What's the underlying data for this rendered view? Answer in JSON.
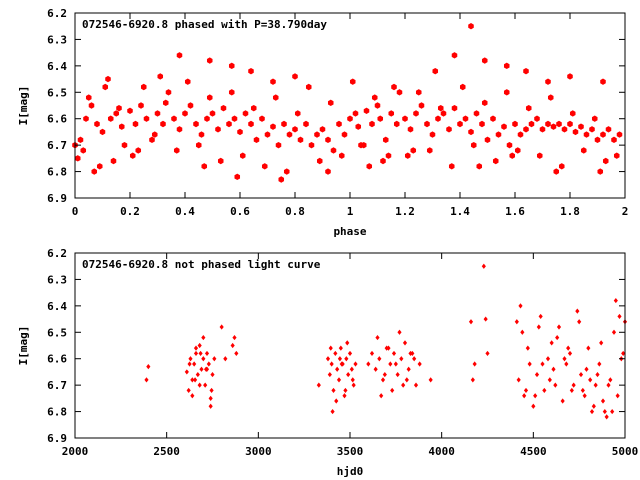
{
  "chart_data": [
    {
      "type": "scatter",
      "title": "072546-6920.8 phased with P=38.790day",
      "xlabel": "phase",
      "ylabel": "I[mag]",
      "xlim": [
        0,
        2
      ],
      "ylim": [
        6.9,
        6.2
      ],
      "y_inverted": true,
      "x_ticks": [
        "0",
        "0.2",
        "0.4",
        "0.6",
        "0.8",
        "1",
        "1.2",
        "1.4",
        "1.6",
        "1.8",
        "2"
      ],
      "y_ticks": [
        "6.2",
        "6.3",
        "6.4",
        "6.5",
        "6.6",
        "6.7",
        "6.8",
        "6.9"
      ],
      "marker": "filled-hexagon",
      "color": "#ff0000",
      "series": [
        {
          "x": [
            0.0,
            0.02,
            0.03,
            0.04,
            0.06,
            0.08,
            0.1,
            0.11,
            0.13,
            0.15,
            0.17,
            0.18,
            0.2,
            0.22,
            0.24,
            0.26,
            0.28,
            0.3,
            0.32,
            0.34,
            0.36,
            0.38,
            0.4,
            0.42,
            0.44,
            0.46,
            0.48,
            0.5,
            0.52,
            0.54,
            0.56,
            0.58,
            0.6,
            0.62,
            0.64,
            0.66,
            0.68,
            0.7,
            0.72,
            0.74,
            0.76,
            0.78,
            0.8,
            0.82,
            0.84,
            0.86,
            0.88,
            0.9,
            0.92,
            0.94,
            0.96,
            0.98,
            1.0,
            1.02,
            1.03,
            1.04,
            1.06,
            1.08,
            1.1,
            1.11,
            1.13,
            1.15,
            1.17,
            1.18,
            1.2,
            1.22,
            1.24,
            1.26,
            1.28,
            1.3,
            1.32,
            1.34,
            1.36,
            1.38,
            1.4,
            1.42,
            1.44,
            1.46,
            1.48,
            1.5,
            1.52,
            1.54,
            1.56,
            1.58,
            1.6,
            1.62,
            1.64,
            1.66,
            1.68,
            1.7,
            1.72,
            1.74,
            1.76,
            1.78,
            1.8,
            1.82,
            1.84,
            1.86,
            1.88,
            1.9,
            1.92,
            1.94,
            1.96,
            1.98,
            0.01,
            0.05,
            0.09,
            0.12,
            0.16,
            0.21,
            0.25,
            0.29,
            0.33,
            0.37,
            0.41,
            0.45,
            0.49,
            0.53,
            0.57,
            0.61,
            0.65,
            0.69,
            0.73,
            0.77,
            0.81,
            0.85,
            0.89,
            0.93,
            0.97,
            1.01,
            1.05,
            1.09,
            1.12,
            1.16,
            1.21,
            1.25,
            1.29,
            1.33,
            1.37,
            1.41,
            1.45,
            1.49,
            1.53,
            1.57,
            1.61,
            1.65,
            1.69,
            1.73,
            1.77,
            1.81,
            1.85,
            1.89,
            1.93,
            1.97,
            0.38,
            0.49,
            0.57,
            0.64,
            0.72,
            0.8,
            1.38,
            1.44,
            1.49,
            1.57,
            1.64,
            1.72,
            1.8,
            0.07,
            0.14,
            0.23,
            0.31,
            0.47,
            0.59,
            0.75,
            1.07,
            1.14,
            1.23,
            1.31,
            1.47,
            1.59,
            1.75,
            1.92,
            0.92,
            1.91
          ],
          "y": [
            6.7,
            6.68,
            6.72,
            6.6,
            6.55,
            6.62,
            6.65,
            6.48,
            6.6,
            6.58,
            6.63,
            6.7,
            6.57,
            6.62,
            6.55,
            6.6,
            6.68,
            6.58,
            6.62,
            6.5,
            6.6,
            6.64,
            6.58,
            6.55,
            6.62,
            6.66,
            6.6,
            6.58,
            6.64,
            6.56,
            6.62,
            6.6,
            6.65,
            6.58,
            6.62,
            6.68,
            6.6,
            6.66,
            6.63,
            6.7,
            6.62,
            6.66,
            6.64,
            6.68,
            6.62,
            6.7,
            6.66,
            6.64,
            6.68,
            6.72,
            6.62,
            6.66,
            6.6,
            6.58,
            6.63,
            6.7,
            6.57,
            6.62,
            6.55,
            6.6,
            6.68,
            6.58,
            6.62,
            6.5,
            6.6,
            6.64,
            6.58,
            6.55,
            6.62,
            6.66,
            6.6,
            6.58,
            6.64,
            6.56,
            6.62,
            6.6,
            6.65,
            6.58,
            6.62,
            6.68,
            6.6,
            6.66,
            6.63,
            6.7,
            6.62,
            6.66,
            6.64,
            6.62,
            6.6,
            6.64,
            6.62,
            6.63,
            6.62,
            6.64,
            6.62,
            6.65,
            6.63,
            6.66,
            6.64,
            6.68,
            6.66,
            6.64,
            6.68,
            6.66,
            6.75,
            6.52,
            6.78,
            6.45,
            6.56,
            6.74,
            6.48,
            6.66,
            6.54,
            6.72,
            6.46,
            6.7,
            6.52,
            6.76,
            6.5,
            6.74,
            6.56,
            6.78,
            6.52,
            6.8,
            6.58,
            6.48,
            6.76,
            6.54,
            6.74,
            6.46,
            6.7,
            6.52,
            6.76,
            6.48,
            6.74,
            6.5,
            6.72,
            6.56,
            6.78,
            6.48,
            6.7,
            6.54,
            6.76,
            6.5,
            6.72,
            6.56,
            6.74,
            6.52,
            6.78,
            6.58,
            6.72,
            6.6,
            6.76,
            6.74,
            6.36,
            6.38,
            6.4,
            6.42,
            6.46,
            6.44,
            6.36,
            6.25,
            6.38,
            6.4,
            6.42,
            6.46,
            6.44,
            6.8,
            6.76,
            6.72,
            6.44,
            6.78,
            6.82,
            6.83,
            6.78,
            6.74,
            6.72,
            6.42,
            6.78,
            6.74,
            6.8,
            6.46,
            6.8,
            6.8
          ]
        }
      ]
    },
    {
      "type": "scatter",
      "title": "072546-6920.8 not phased light curve",
      "xlabel": "hjd0",
      "ylabel": "I[mag]",
      "xlim": [
        2000,
        5000
      ],
      "ylim": [
        6.9,
        6.2
      ],
      "y_inverted": true,
      "x_ticks": [
        "2000",
        "2500",
        "3000",
        "3500",
        "4000",
        "4500",
        "5000"
      ],
      "y_ticks": [
        "6.2",
        "6.3",
        "6.4",
        "6.5",
        "6.6",
        "6.7",
        "6.8",
        "6.9"
      ],
      "marker": "filled-diamond",
      "color": "#ff0000",
      "series": [
        {
          "x": [
            2390,
            2400,
            2610,
            2620,
            2630,
            2640,
            2650,
            2660,
            2670,
            2680,
            2690,
            2700,
            2710,
            2720,
            2730,
            2740,
            2750,
            2760,
            2640,
            2660,
            2680,
            2700,
            2720,
            2740,
            2625,
            2655,
            2685,
            2715,
            2745,
            2800,
            2820,
            2860,
            2870,
            2880,
            3330,
            3380,
            3390,
            3400,
            3410,
            3420,
            3430,
            3440,
            3450,
            3460,
            3470,
            3480,
            3490,
            3500,
            3510,
            3520,
            3530,
            3395,
            3425,
            3455,
            3485,
            3515,
            3405,
            3445,
            3475,
            3600,
            3620,
            3640,
            3660,
            3680,
            3700,
            3720,
            3740,
            3760,
            3780,
            3800,
            3820,
            3840,
            3860,
            3880,
            3650,
            3690,
            3730,
            3770,
            3810,
            3850,
            3670,
            3710,
            3750,
            3790,
            3830,
            3940,
            4160,
            4170,
            4180,
            4230,
            4240,
            4250,
            4410,
            4420,
            4440,
            4460,
            4480,
            4500,
            4520,
            4540,
            4560,
            4580,
            4600,
            4620,
            4640,
            4660,
            4680,
            4700,
            4720,
            4740,
            4760,
            4780,
            4800,
            4820,
            4840,
            4860,
            4880,
            4900,
            4920,
            4940,
            4960,
            4980,
            5000,
            4430,
            4470,
            4510,
            4550,
            4590,
            4630,
            4670,
            4710,
            4750,
            4790,
            4830,
            4870,
            4910,
            4950,
            4990,
            4450,
            4530,
            4610,
            4690,
            4770,
            4850,
            4930,
            4970,
            4890,
            4810
          ],
          "y": [
            6.68,
            6.63,
            6.65,
            6.72,
            6.6,
            6.68,
            6.62,
            6.58,
            6.66,
            6.55,
            6.64,
            6.6,
            6.7,
            6.58,
            6.62,
            6.75,
            6.66,
            6.6,
            6.74,
            6.56,
            6.7,
            6.52,
            6.64,
            6.78,
            6.62,
            6.68,
            6.58,
            6.64,
            6.72,
            6.48,
            6.6,
            6.55,
            6.52,
            6.58,
            6.7,
            6.6,
            6.66,
            6.62,
            6.72,
            6.58,
            6.64,
            6.68,
            6.56,
            6.62,
            6.74,
            6.6,
            6.66,
            6.58,
            6.64,
            6.7,
            6.62,
            6.56,
            6.76,
            6.62,
            6.54,
            6.68,
            6.8,
            6.6,
            6.72,
            6.62,
            6.58,
            6.64,
            6.6,
            6.68,
            6.56,
            6.62,
            6.58,
            6.66,
            6.6,
            6.54,
            6.64,
            6.58,
            6.7,
            6.62,
            6.52,
            6.66,
            6.72,
            6.5,
            6.68,
            6.6,
            6.74,
            6.56,
            6.62,
            6.7,
            6.58,
            6.68,
            6.46,
            6.68,
            6.62,
            6.25,
            6.45,
            6.58,
            6.46,
            6.68,
            6.5,
            6.72,
            6.62,
            6.78,
            6.66,
            6.44,
            6.72,
            6.6,
            6.54,
            6.7,
            6.48,
            6.76,
            6.62,
            6.58,
            6.7,
            6.42,
            6.66,
            6.74,
            6.56,
            6.8,
            6.7,
            6.62,
            6.76,
            6.82,
            6.68,
            6.5,
            6.74,
            6.6,
            6.46,
            6.4,
            6.56,
            6.74,
            6.62,
            6.68,
            6.52,
            6.6,
            6.72,
            6.46,
            6.64,
            6.78,
            6.54,
            6.7,
            6.38,
            6.58,
            6.74,
            6.48,
            6.64,
            6.56,
            6.72,
            6.66,
            6.8,
            6.44,
            6.8,
            6.68
          ]
        }
      ]
    }
  ]
}
